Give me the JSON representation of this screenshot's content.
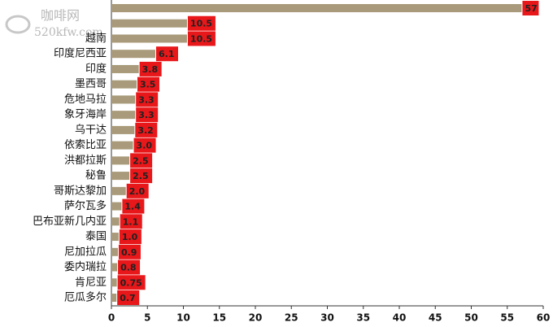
{
  "watermark": {
    "name": "咖啡网",
    "url": "520kfw.com"
  },
  "chart_data": {
    "type": "bar",
    "orientation": "horizontal",
    "categories": [
      null,
      null,
      "越南",
      "印度尼西亚",
      "印度",
      "墨西哥",
      "危地马拉",
      "象牙海岸",
      "乌干达",
      "依索比亚",
      "洪都拉斯",
      "秘鲁",
      "哥斯达黎加",
      "萨尔瓦多",
      "巴布亚新几内亚",
      "泰国",
      "尼加拉瓜",
      "委内瑞拉",
      "肯尼亚",
      "厄瓜多尔"
    ],
    "values": [
      57,
      10.5,
      10.5,
      6.1,
      3.8,
      3.5,
      3.3,
      3.3,
      3.2,
      3,
      2.5,
      2.5,
      2,
      1.4,
      1.1,
      1,
      0.9,
      0.8,
      0.75,
      0.7
    ],
    "value_labels": [
      "57",
      "10.5",
      "10.5",
      "6.1",
      "3.8",
      "3.5",
      "3.3",
      "3.3",
      "3.2",
      "3.0",
      "2.5",
      "2.5",
      "2.0",
      "1.4",
      "1.1",
      "1.0",
      "0.9",
      "0.8",
      "0.75",
      "0.7"
    ],
    "color": "#a89a7a",
    "label_color": "#e8171a",
    "xlim": [
      0,
      60
    ],
    "xticks": [
      0,
      5,
      10,
      15,
      20,
      25,
      30,
      35,
      40,
      45,
      50,
      55,
      60
    ]
  }
}
